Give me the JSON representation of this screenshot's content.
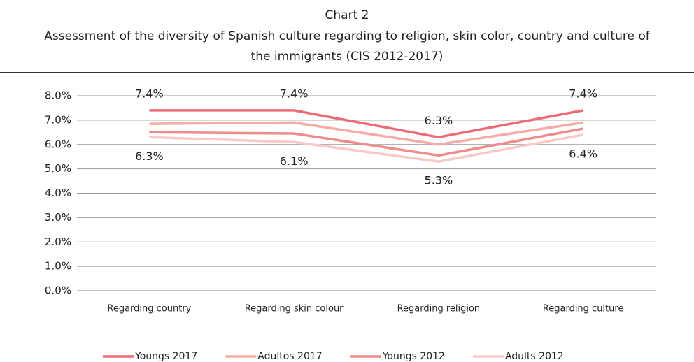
{
  "chart_data": {
    "type": "line",
    "title": "Chart 2",
    "subtitle": "Assessment of the diversity of Spanish culture regarding to religion, skin color, country and culture of the immigrants (CIS 2012-2017)",
    "categories": [
      "Regarding country",
      "Regarding skin colour",
      "Regarding religion",
      "Regarding culture"
    ],
    "series": [
      {
        "name": "Youngs 2017",
        "color": "#ee6b75",
        "values": [
          7.4,
          7.4,
          6.3,
          7.4
        ],
        "value_labels": [
          "7.4%",
          "7.4%",
          "6.3%",
          "7.4%"
        ],
        "label_position": "above"
      },
      {
        "name": "Adultos 2017",
        "color": "#f6aba7",
        "values": [
          6.85,
          6.9,
          6.0,
          6.9
        ]
      },
      {
        "name": "Youngs 2012",
        "color": "#f08b8a",
        "values": [
          6.5,
          6.45,
          5.55,
          6.65
        ]
      },
      {
        "name": "Adults 2012",
        "color": "#f9c9c5",
        "values": [
          6.3,
          6.1,
          5.3,
          6.4
        ],
        "value_labels": [
          "6.3%",
          "6.1%",
          "5.3%",
          "6.4%"
        ],
        "label_position": "below"
      }
    ],
    "ylim": [
      0,
      8
    ],
    "yticks": [
      {
        "value": 0,
        "label": "0.0%"
      },
      {
        "value": 1,
        "label": "1.0%"
      },
      {
        "value": 2,
        "label": "2.0%"
      },
      {
        "value": 3,
        "label": "3.0%"
      },
      {
        "value": 4,
        "label": "4.0%"
      },
      {
        "value": 5,
        "label": "5.0%"
      },
      {
        "value": 6,
        "label": "6.0%"
      },
      {
        "value": 7,
        "label": "7.0%"
      },
      {
        "value": 8,
        "label": "8.0%"
      }
    ],
    "grid": true,
    "legend": "bottom"
  }
}
